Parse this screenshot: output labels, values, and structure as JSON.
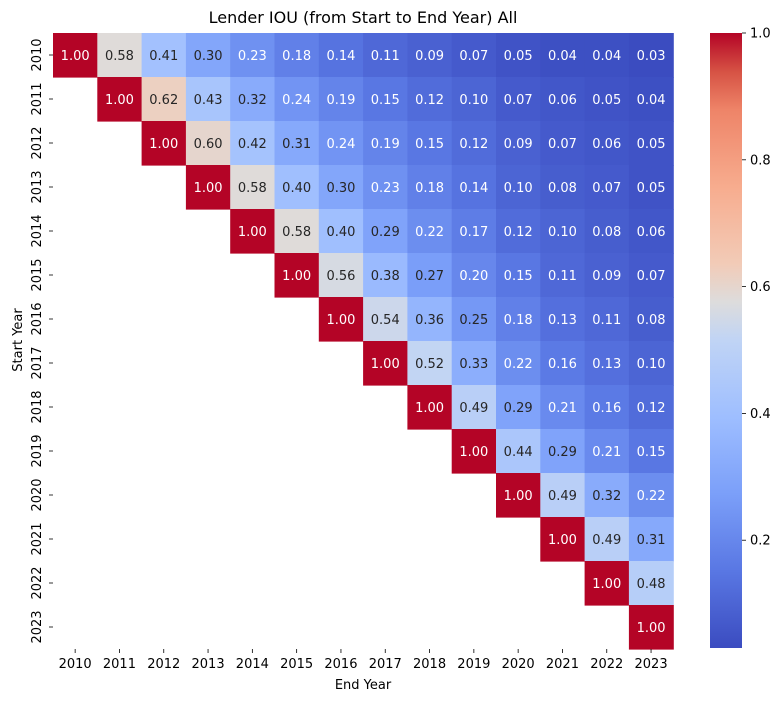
{
  "chart_data": {
    "type": "heatmap",
    "title": "Lender IOU (from Start to End Year) All",
    "xlabel": "End Year",
    "ylabel": "Start Year",
    "x_categories": [
      "2010",
      "2011",
      "2012",
      "2013",
      "2014",
      "2015",
      "2016",
      "2017",
      "2018",
      "2019",
      "2020",
      "2021",
      "2022",
      "2023"
    ],
    "y_categories": [
      "2010",
      "2011",
      "2012",
      "2013",
      "2014",
      "2015",
      "2016",
      "2017",
      "2018",
      "2019",
      "2020",
      "2021",
      "2022",
      "2023"
    ],
    "values": [
      [
        1.0,
        0.58,
        0.41,
        0.3,
        0.23,
        0.18,
        0.14,
        0.11,
        0.09,
        0.07,
        0.05,
        0.04,
        0.04,
        0.03
      ],
      [
        null,
        1.0,
        0.62,
        0.43,
        0.32,
        0.24,
        0.19,
        0.15,
        0.12,
        0.1,
        0.07,
        0.06,
        0.05,
        0.04
      ],
      [
        null,
        null,
        1.0,
        0.6,
        0.42,
        0.31,
        0.24,
        0.19,
        0.15,
        0.12,
        0.09,
        0.07,
        0.06,
        0.05
      ],
      [
        null,
        null,
        null,
        1.0,
        0.58,
        0.4,
        0.3,
        0.23,
        0.18,
        0.14,
        0.1,
        0.08,
        0.07,
        0.05
      ],
      [
        null,
        null,
        null,
        null,
        1.0,
        0.58,
        0.4,
        0.29,
        0.22,
        0.17,
        0.12,
        0.1,
        0.08,
        0.06
      ],
      [
        null,
        null,
        null,
        null,
        null,
        1.0,
        0.56,
        0.38,
        0.27,
        0.2,
        0.15,
        0.11,
        0.09,
        0.07
      ],
      [
        null,
        null,
        null,
        null,
        null,
        null,
        1.0,
        0.54,
        0.36,
        0.25,
        0.18,
        0.13,
        0.11,
        0.08
      ],
      [
        null,
        null,
        null,
        null,
        null,
        null,
        null,
        1.0,
        0.52,
        0.33,
        0.22,
        0.16,
        0.13,
        0.1
      ],
      [
        null,
        null,
        null,
        null,
        null,
        null,
        null,
        null,
        1.0,
        0.49,
        0.29,
        0.21,
        0.16,
        0.12
      ],
      [
        null,
        null,
        null,
        null,
        null,
        null,
        null,
        null,
        null,
        1.0,
        0.44,
        0.29,
        0.21,
        0.15
      ],
      [
        null,
        null,
        null,
        null,
        null,
        null,
        null,
        null,
        null,
        null,
        1.0,
        0.49,
        0.32,
        0.22
      ],
      [
        null,
        null,
        null,
        null,
        null,
        null,
        null,
        null,
        null,
        null,
        null,
        1.0,
        0.49,
        0.31
      ],
      [
        null,
        null,
        null,
        null,
        null,
        null,
        null,
        null,
        null,
        null,
        null,
        null,
        1.0,
        0.48
      ],
      [
        null,
        null,
        null,
        null,
        null,
        null,
        null,
        null,
        null,
        null,
        null,
        null,
        null,
        1.0
      ]
    ],
    "value_format": "2 decimals",
    "colormap": "coolwarm",
    "colorbar": {
      "range": [
        0.03,
        1.0
      ],
      "ticks": [
        0.2,
        0.4,
        0.6,
        0.8,
        1.0
      ],
      "tick_labels": [
        "0.2",
        "0.4",
        "0.6",
        "0.8",
        "1.0"
      ],
      "placement": "right"
    },
    "grid": false,
    "legend": "none"
  }
}
